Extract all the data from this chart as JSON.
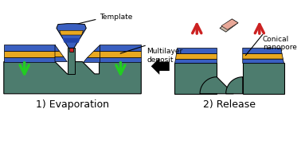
{
  "bg_color": "#ffffff",
  "teal_color": "#4d7c6e",
  "blue_color": "#3a5fc0",
  "gold_color": "#e8a820",
  "dark_teal": "#3d6b5e",
  "red_color": "#cc2222",
  "green_color": "#22cc22",
  "black_color": "#111111",
  "label1": "1) Evaporation",
  "label2": "2) Release",
  "label_template": "Template",
  "label_multilayer": "Multilayer\ndeposit",
  "label_conical": "Conical\nnanopore"
}
